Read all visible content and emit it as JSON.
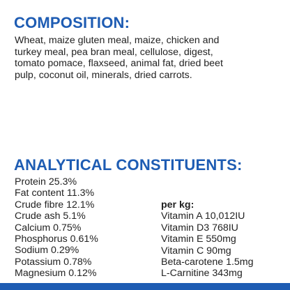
{
  "composition": {
    "heading": "COMPOSITION:",
    "lines": [
      "Wheat, maize gluten meal, maize, chicken and",
      "turkey meal, pea bran meal, cellulose, digest,",
      "tomato pomace, flaxseed, animal fat, dried beet",
      "pulp, coconut oil, minerals, dried carrots."
    ]
  },
  "analytical": {
    "heading": "ANALYTICAL CONSTITUENTS:",
    "constituents": [
      "Protein 25.3%",
      "Fat content 11.3%",
      "Crude fibre 12.1%",
      "Crude ash 5.1%",
      "Calcium 0.75%",
      "Phosphorus 0.61%",
      "Sodium 0.29%",
      "Potassium 0.78%",
      "Magnesium 0.12%"
    ],
    "per_kg_label": "per kg:",
    "vitamins": [
      "Vitamin A 10,012IU",
      "Vitamin D3 768IU",
      "Vitamin E 550mg",
      "Vitamin C 90mg",
      "Beta-carotene 1.5mg",
      "L-Carnitine 343mg"
    ]
  },
  "colors": {
    "heading": "#1e5cb3",
    "text": "#222222",
    "bottom_bar": "#1e5cb3"
  }
}
